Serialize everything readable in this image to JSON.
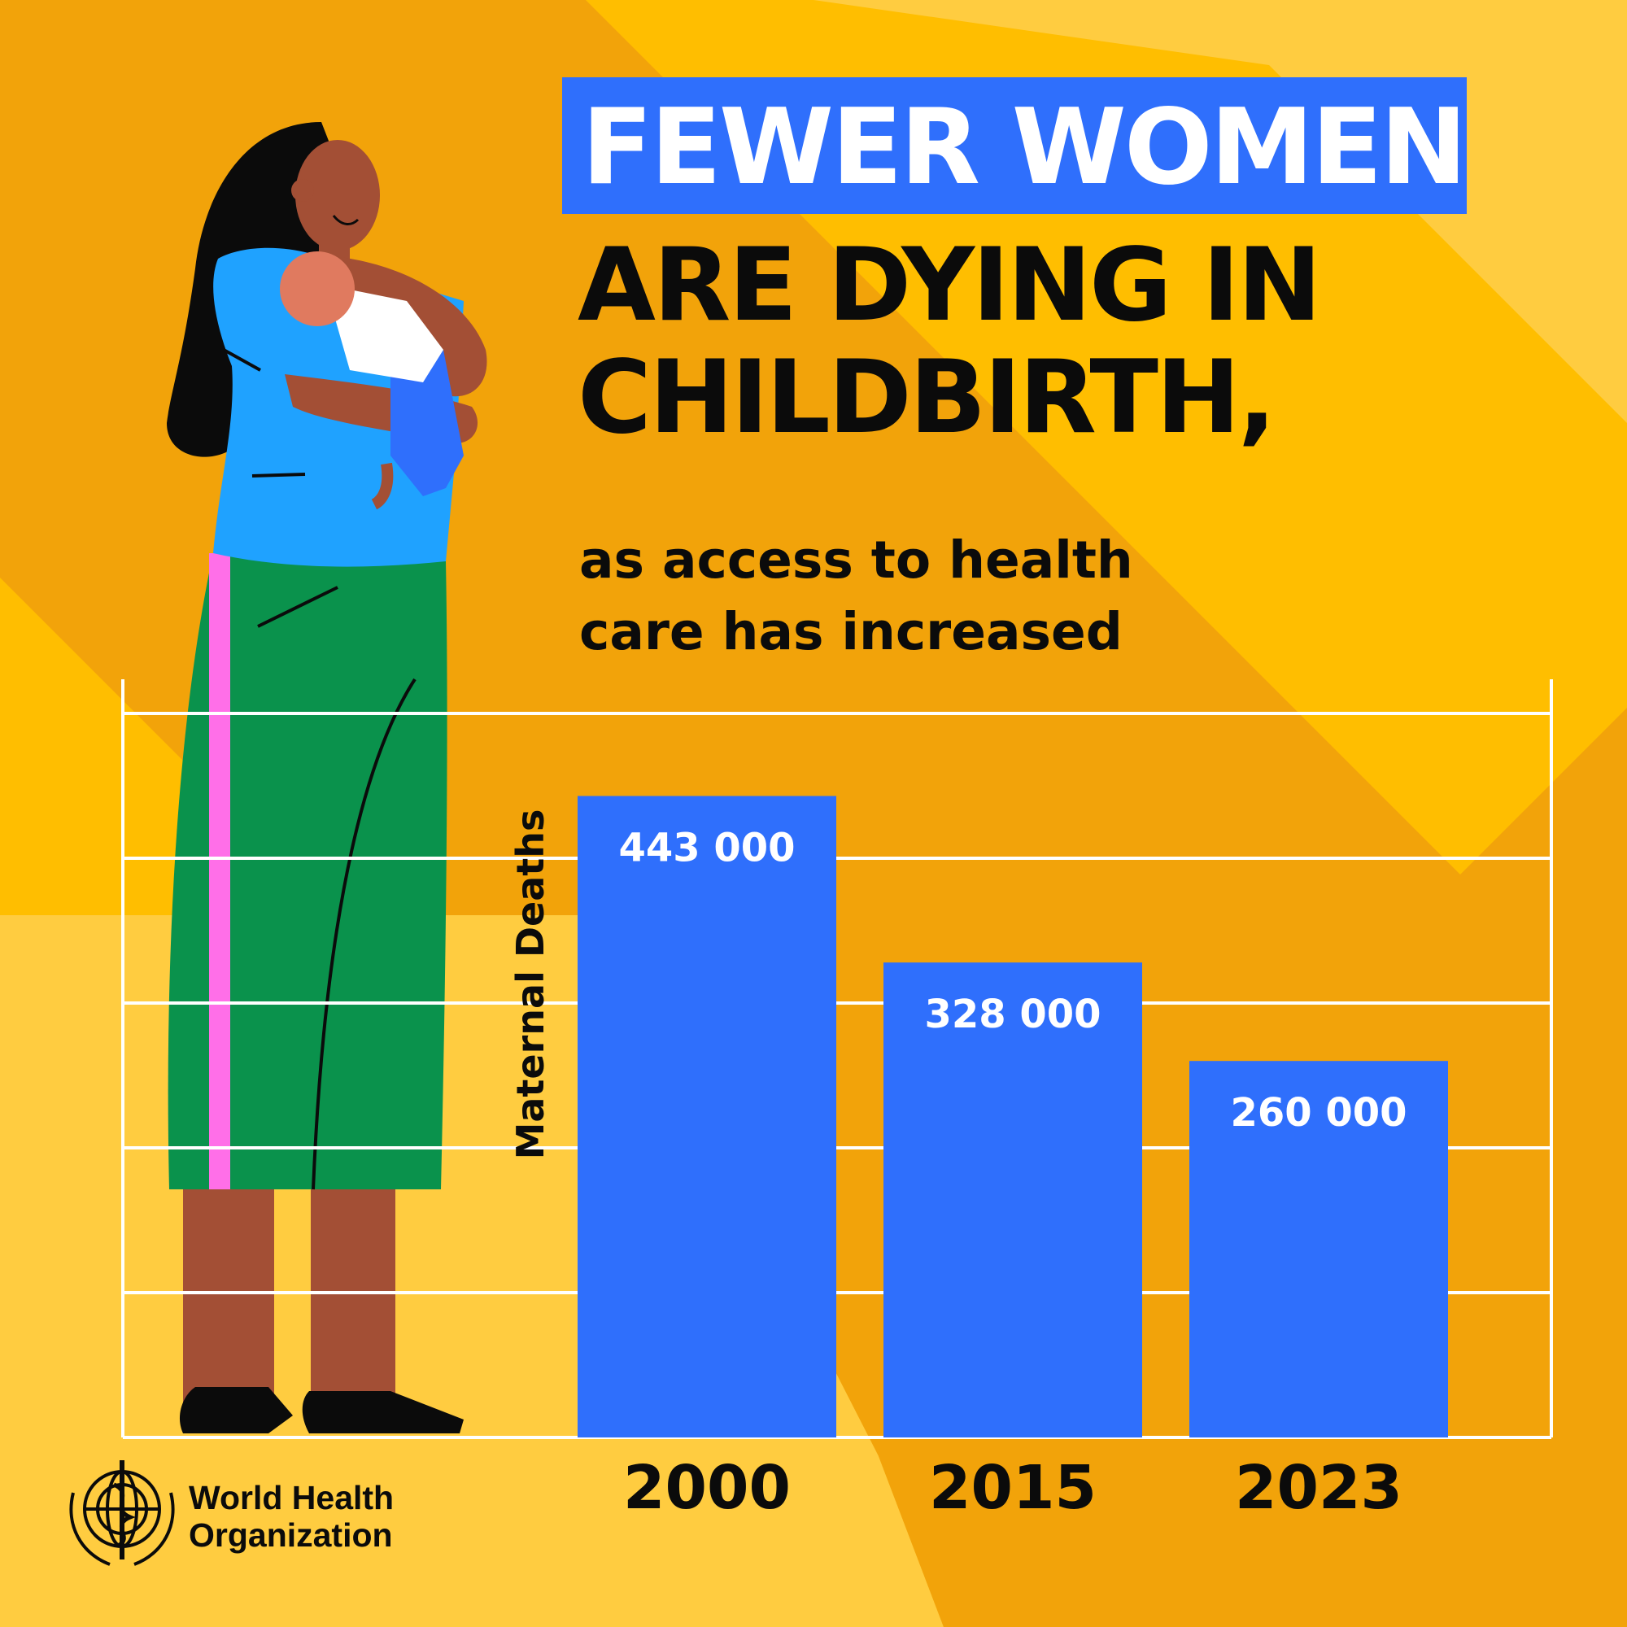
{
  "header": {
    "title_line1": "FEWER WOMEN",
    "title_line2": "ARE DYING IN",
    "title_line3": "CHILDBIRTH,",
    "subtitle_line1": "as access to health",
    "subtitle_line2": "care has increased"
  },
  "logo": {
    "line1": "World Health",
    "line2": "Organization"
  },
  "colors": {
    "background": "#f2a30a",
    "background_light": "#ffcc40",
    "bar": "#2f6ffc",
    "grid": "#ffffff",
    "text": "#0b0b0b"
  },
  "chart_data": {
    "type": "bar",
    "categories": [
      "2000",
      "2015",
      "2023"
    ],
    "values": [
      443000,
      328000,
      260000
    ],
    "value_labels": [
      "443 000",
      "328 000",
      "260 000"
    ],
    "xlabel": "",
    "ylabel": "Maternal Deaths",
    "ylim": [
      0,
      500000
    ],
    "grid": true,
    "legend": "none"
  }
}
